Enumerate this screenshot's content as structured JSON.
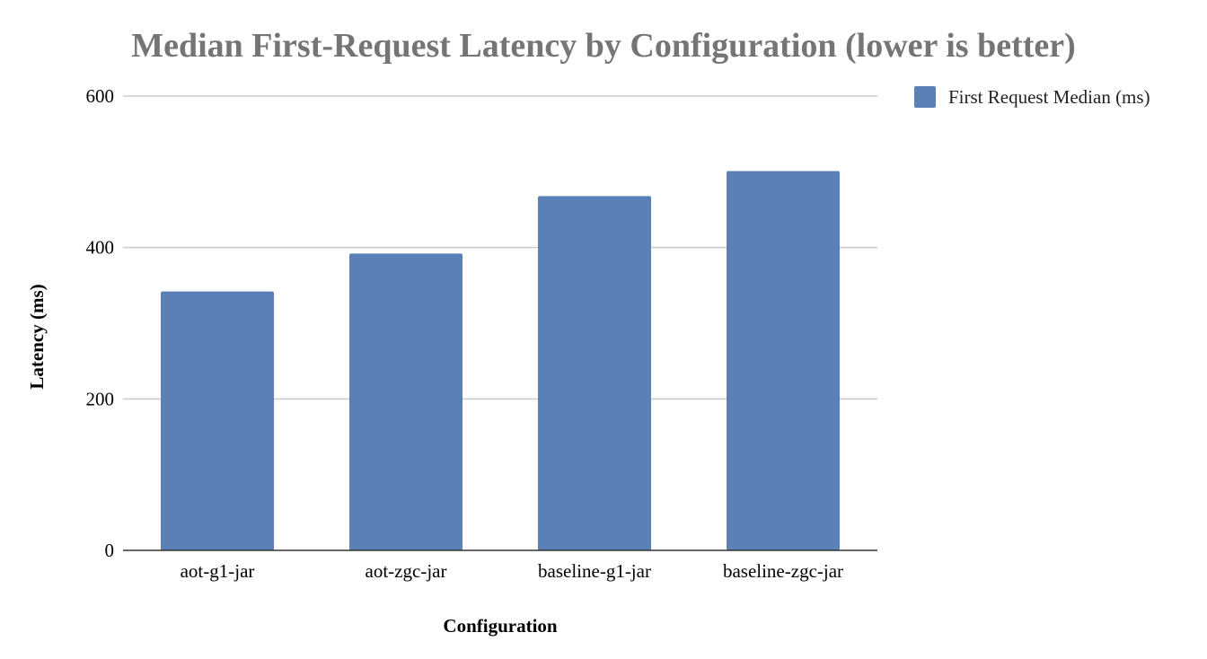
{
  "chart_data": {
    "type": "bar",
    "title": "Median First-Request Latency by Configuration (lower is better)",
    "xlabel": "Configuration",
    "ylabel": "Latency (ms)",
    "categories": [
      "aot-g1-jar",
      "aot-zgc-jar",
      "baseline-g1-jar",
      "baseline-zgc-jar"
    ],
    "series": [
      {
        "name": "First Request Median (ms)",
        "values": [
          342,
          392,
          468,
          501
        ],
        "color": "#5b80b5"
      }
    ],
    "ylim": [
      0,
      600
    ],
    "yticks": [
      0,
      200,
      400,
      600
    ],
    "grid": true,
    "legend_position": "right"
  }
}
